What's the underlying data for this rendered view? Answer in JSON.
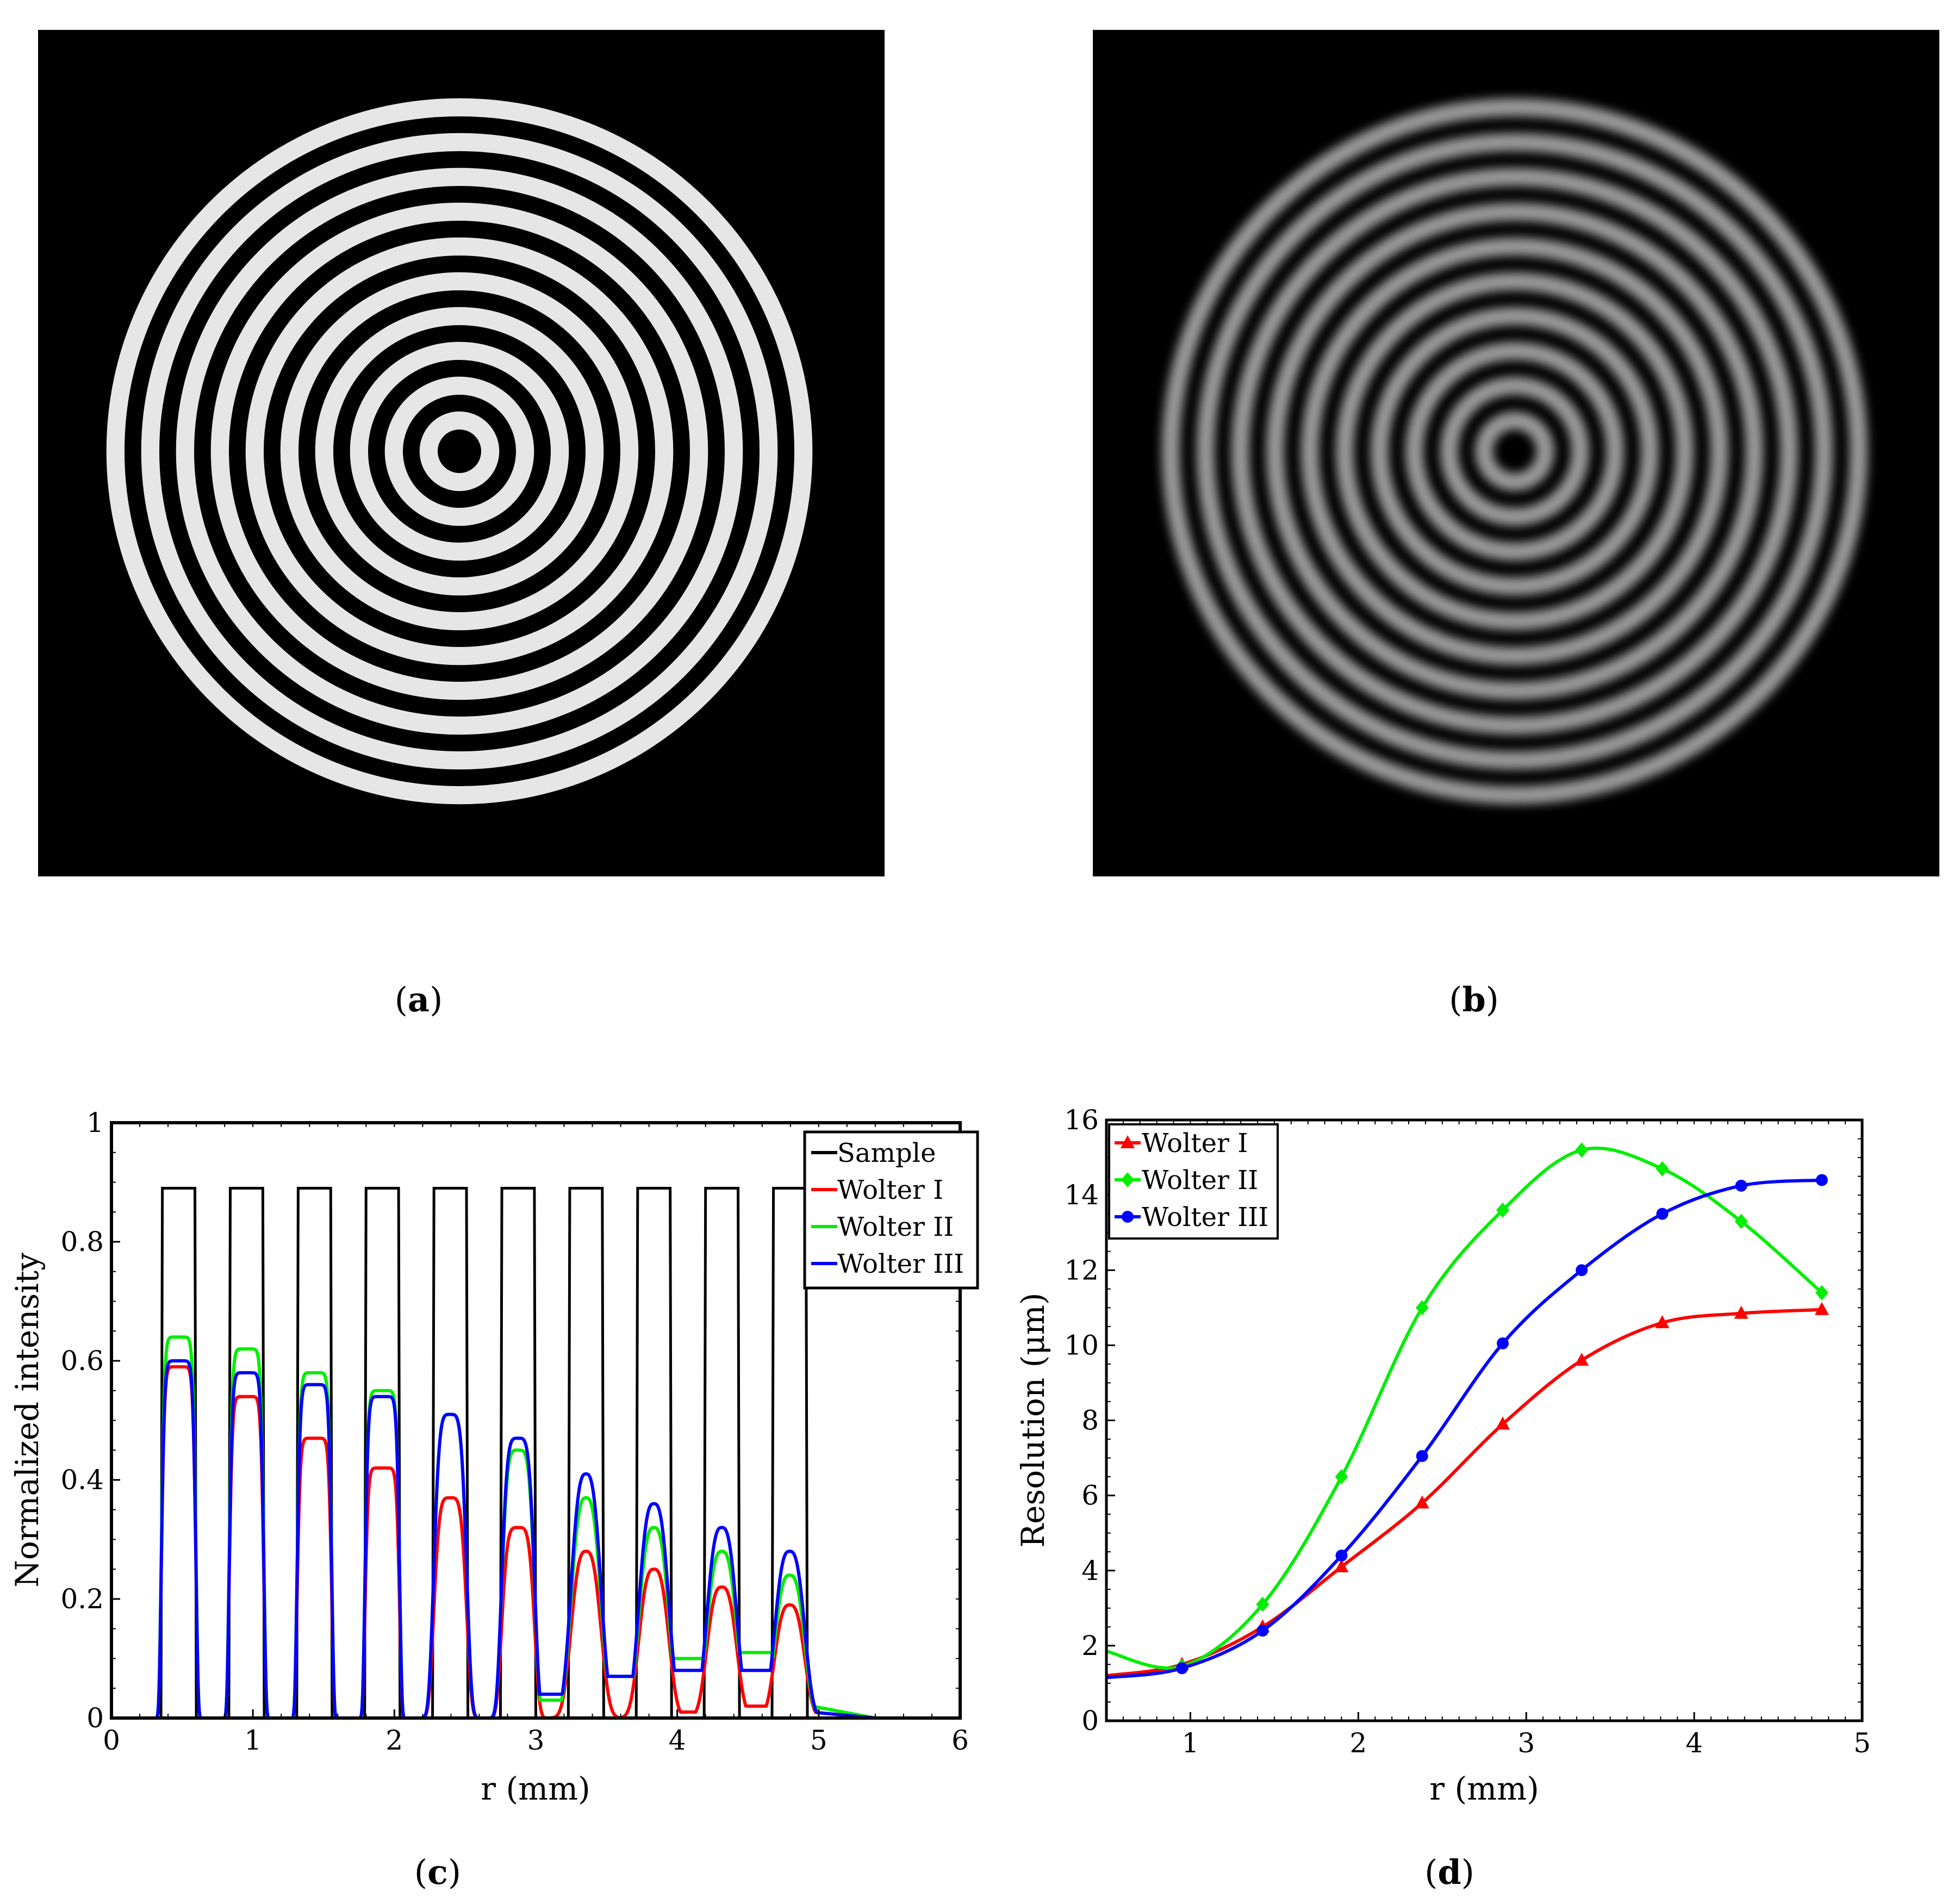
{
  "captions": {
    "a": {
      "open": "(",
      "letter": "a",
      "close": ")"
    },
    "b": {
      "open": "(",
      "letter": "b",
      "close": ")"
    },
    "c": {
      "open": "(",
      "letter": "c",
      "close": ")"
    },
    "d": {
      "open": "(",
      "letter": "d",
      "close": ")"
    }
  },
  "images": {
    "a": {
      "description_name": "sample-zone-plate",
      "rings": 10,
      "ring_color": "#e6e6e6",
      "background": "#000000"
    },
    "b": {
      "description_name": "imaged-zone-plate",
      "rings": 10,
      "ring_color": "#9a9a9a",
      "background": "#000000"
    }
  },
  "colors": {
    "sample": "#000000",
    "wolter1": "#ff0000",
    "wolter2": "#00ee00",
    "wolter3": "#0000ff"
  },
  "chart_data": [
    {
      "id": "c",
      "type": "line",
      "xlabel": "r (mm)",
      "ylabel": "Normalized intensity",
      "xlim": [
        0,
        6
      ],
      "ylim": [
        0,
        1
      ],
      "xticks": [
        "0",
        "1",
        "2",
        "3",
        "4",
        "5",
        "6"
      ],
      "yticks": [
        "0",
        "0.2",
        "0.4",
        "0.6",
        "0.8",
        "1"
      ],
      "legend_position": "top-right",
      "legend": [
        "Sample",
        "Wolter I",
        "Wolter II",
        "Wolter III"
      ],
      "sample_level": 0.89,
      "ring_start": [
        0.35,
        0.83,
        1.31,
        1.79,
        2.27,
        2.75,
        3.23,
        3.71,
        4.19,
        4.67
      ],
      "ring_width": 0.25,
      "series": [
        {
          "name": "Wolter I",
          "peaks": [
            0.59,
            0.54,
            0.47,
            0.42,
            0.37,
            0.32,
            0.28,
            0.25,
            0.22,
            0.19
          ],
          "troughs": [
            0,
            0,
            0,
            0,
            0,
            0,
            0,
            0.01,
            0.02,
            0.02
          ]
        },
        {
          "name": "Wolter II",
          "peaks": [
            0.64,
            0.62,
            0.58,
            0.55,
            0.51,
            0.45,
            0.37,
            0.32,
            0.28,
            0.24
          ],
          "troughs": [
            0,
            0,
            0,
            0,
            0,
            0.03,
            0.07,
            0.1,
            0.11,
            0.03
          ]
        },
        {
          "name": "Wolter III",
          "peaks": [
            0.6,
            0.58,
            0.56,
            0.54,
            0.51,
            0.47,
            0.41,
            0.36,
            0.32,
            0.28
          ],
          "troughs": [
            0,
            0,
            0,
            0,
            0,
            0.04,
            0.07,
            0.08,
            0.08,
            0.02
          ]
        }
      ]
    },
    {
      "id": "d",
      "type": "line",
      "xlabel": "r (mm)",
      "ylabel": "Resolution (μm)",
      "xlim": [
        0.5,
        5
      ],
      "ylim": [
        0,
        16
      ],
      "xticks": [
        "1",
        "2",
        "3",
        "4",
        "5"
      ],
      "yticks": [
        "0",
        "2",
        "4",
        "6",
        "8",
        "10",
        "12",
        "14",
        "16"
      ],
      "legend_position": "top-left",
      "series": [
        {
          "name": "Wolter I",
          "marker": "triangle",
          "x": [
            0.5,
            0.95,
            1.43,
            1.9,
            2.38,
            2.86,
            3.33,
            3.81,
            4.28,
            4.76
          ],
          "y": [
            1.2,
            1.5,
            2.5,
            4.1,
            5.8,
            7.9,
            9.6,
            10.6,
            10.85,
            10.95
          ]
        },
        {
          "name": "Wolter II",
          "marker": "diamond",
          "x": [
            0.5,
            0.95,
            1.43,
            1.9,
            2.38,
            2.86,
            3.33,
            3.81,
            4.28,
            4.76
          ],
          "y": [
            1.85,
            1.45,
            3.1,
            6.5,
            11.0,
            13.6,
            15.2,
            14.7,
            13.3,
            11.4
          ]
        },
        {
          "name": "Wolter III",
          "marker": "circle",
          "x": [
            0.5,
            0.95,
            1.43,
            1.9,
            2.38,
            2.86,
            3.33,
            3.81,
            4.28,
            4.76
          ],
          "y": [
            1.15,
            1.4,
            2.4,
            4.4,
            7.05,
            10.05,
            12.0,
            13.5,
            14.25,
            14.4
          ]
        }
      ]
    }
  ]
}
